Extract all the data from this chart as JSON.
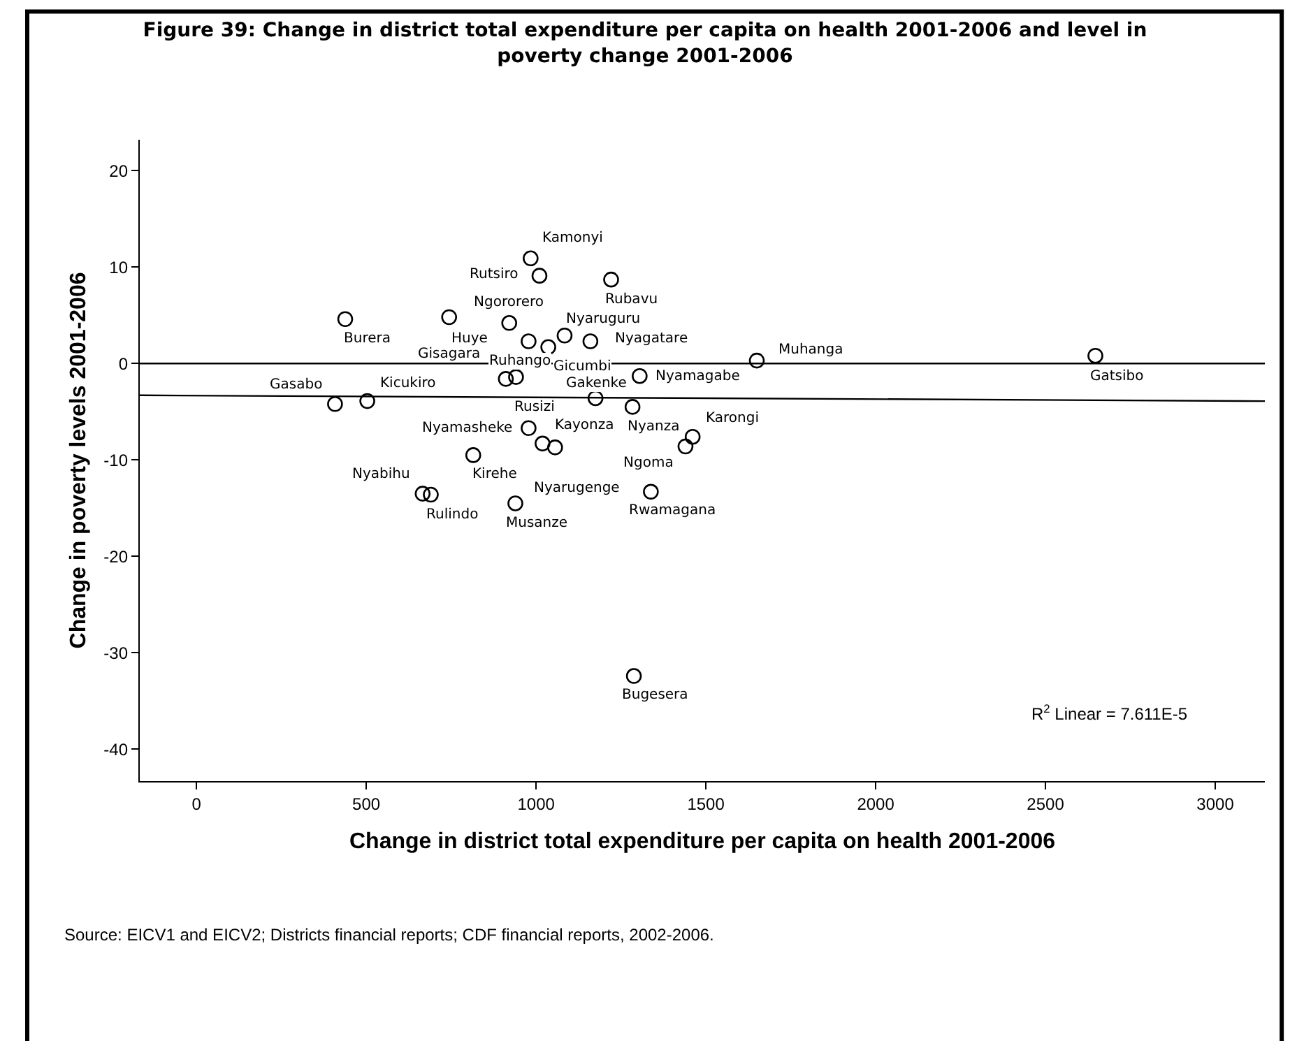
{
  "chart_data": {
    "type": "scatter",
    "title": "Figure 39: Change in district total expenditure per capita on health 2001-2006 and level in poverty change 2001-2006",
    "xlabel": "Change in district total expenditure per capita on health 2001-2006",
    "ylabel": "Change in poverty levels 2001-2006",
    "xlim": [
      -167,
      3146
    ],
    "ylim": [
      -43.3,
      23.2
    ],
    "xticks": [
      0,
      500,
      1000,
      1500,
      2000,
      2500,
      3000
    ],
    "yticks": [
      -40,
      -30,
      -20,
      -10,
      0,
      10,
      20
    ],
    "grid": false,
    "marker": "circle",
    "series": [
      {
        "color": "#000000",
        "x": [
          984,
          1010,
          1221,
          438,
          744,
          921,
          978,
          1084,
          1160,
          1036,
          911,
          941,
          1175,
          1305,
          1650,
          2647,
          408,
          503,
          1284,
          978,
          1019,
          1056,
          1461,
          1440,
          815,
          666,
          690,
          939,
          1338,
          1288
        ],
        "values": [
          10.9,
          9.1,
          8.7,
          4.6,
          4.8,
          4.2,
          2.3,
          2.9,
          2.3,
          1.7,
          -1.6,
          -1.4,
          -3.6,
          -1.3,
          0.3,
          0.8,
          -4.2,
          -3.9,
          -4.5,
          -6.7,
          -8.3,
          -8.7,
          -7.6,
          -8.6,
          -9.5,
          -13.5,
          -13.6,
          -14.5,
          -13.3,
          -32.4
        ]
      },
      {
        "type": "line",
        "color": "#000000",
        "marker": "none",
        "x": [
          -167,
          3146
        ],
        "values": [
          -3.3,
          -3.9
        ]
      }
    ],
    "ref_lines": [
      {
        "axis": "y",
        "value": 0,
        "color": "#000000"
      }
    ],
    "annotations": [
      "R$^{2}$ Linear = 7.611E-5",
      "Source: EICV1 and EICV2; Districts financial reports; CDF financial reports, 2002-2006.",
      {
        "text": "Kamonyi",
        "x": 984,
        "y": 10.9
      },
      {
        "text": "Rutsiro",
        "x": 1010,
        "y": 9.1
      },
      {
        "text": "Rubavu",
        "x": 1221,
        "y": 8.7
      },
      {
        "text": "Burera",
        "x": 438,
        "y": 4.6
      },
      {
        "text": "Huye",
        "x": 744,
        "y": 4.8
      },
      {
        "text": "Ngororero",
        "x": 921,
        "y": 4.2
      },
      {
        "text": "Nyagatare",
        "x": 1160,
        "y": 2.3
      },
      {
        "text": "Nyaruguru",
        "x": 1084,
        "y": 2.9
      },
      {
        "text": "Gicumbi",
        "x": 1036,
        "y": 1.7
      },
      {
        "text": "Ruhango",
        "x": 978,
        "y": 2.3
      },
      {
        "text": "Gisagara",
        "x": 911,
        "y": -1.6
      },
      {
        "text": "Rusizi",
        "x": 941,
        "y": -1.4
      },
      {
        "text": "Gakenke",
        "x": 1175,
        "y": -3.6
      },
      {
        "text": "Nyamagabe",
        "x": 1305,
        "y": -1.3
      },
      {
        "text": "Muhanga",
        "x": 1650,
        "y": 0.3
      },
      {
        "text": "Gatsibo",
        "x": 2647,
        "y": 0.8
      },
      {
        "text": "Gasabo",
        "x": 408,
        "y": -4.2
      },
      {
        "text": "Kicukiro",
        "x": 503,
        "y": -3.9
      },
      {
        "text": "Nyanza",
        "x": 1284,
        "y": -4.5
      },
      {
        "text": "Nyamasheke",
        "x": 978,
        "y": -6.7
      },
      {
        "text": "Kayonza",
        "x": 1019,
        "y": -8.3
      },
      {
        "text": "Nyarugenge",
        "x": 1056,
        "y": -8.7
      },
      {
        "text": "Karongi",
        "x": 1461,
        "y": -7.6
      },
      {
        "text": "Ngoma",
        "x": 1440,
        "y": -8.6
      },
      {
        "text": "Kirehe",
        "x": 815,
        "y": -9.5
      },
      {
        "text": "Nyabihu",
        "x": 666,
        "y": -13.5
      },
      {
        "text": "Rulindo",
        "x": 690,
        "y": -13.6
      },
      {
        "text": "Musanze",
        "x": 939,
        "y": -14.5
      },
      {
        "text": "Rwamagana",
        "x": 1338,
        "y": -13.3
      },
      {
        "text": "Bugesera",
        "x": 1288,
        "y": -32.4
      }
    ]
  }
}
